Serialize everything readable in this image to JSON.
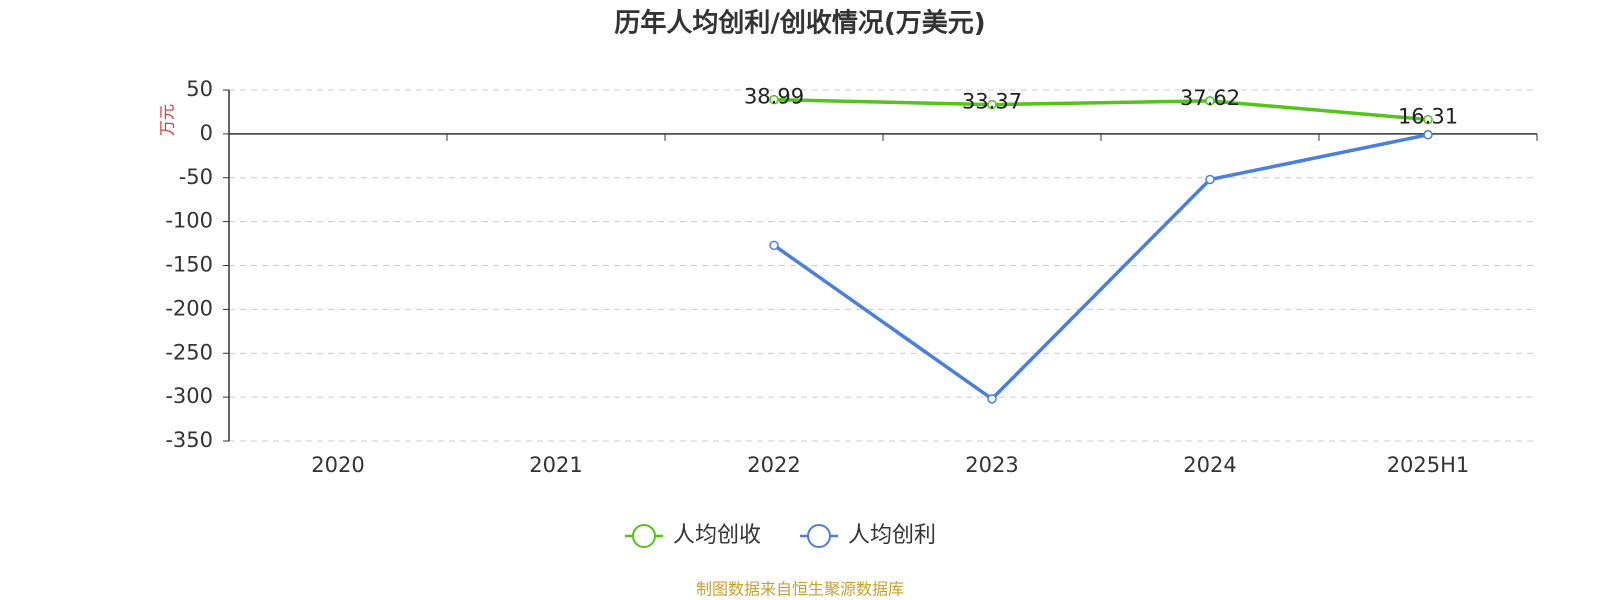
{
  "chart_data": {
    "type": "line",
    "title": "历年人均创利/创收情况(万美元)",
    "y_label": "万元",
    "categories": [
      "2020",
      "2021",
      "2022",
      "2023",
      "2024",
      "2025H1"
    ],
    "series": [
      {
        "name": "人均创收",
        "color": "#52c41a",
        "values": [
          null,
          null,
          38.99,
          33.37,
          37.62,
          16.31
        ],
        "show_labels": true
      },
      {
        "name": "人均创利",
        "color": "#4a7fdc",
        "values": [
          null,
          null,
          -127,
          -302,
          -52,
          -1
        ],
        "show_labels": false
      }
    ],
    "ylim": [
      -350,
      50
    ],
    "yticks": [
      50,
      0,
      -50,
      -100,
      -150,
      -200,
      -250,
      -300,
      -350
    ],
    "grid": true,
    "legend": "bottom",
    "source": "制图数据来自恒生聚源数据库"
  }
}
